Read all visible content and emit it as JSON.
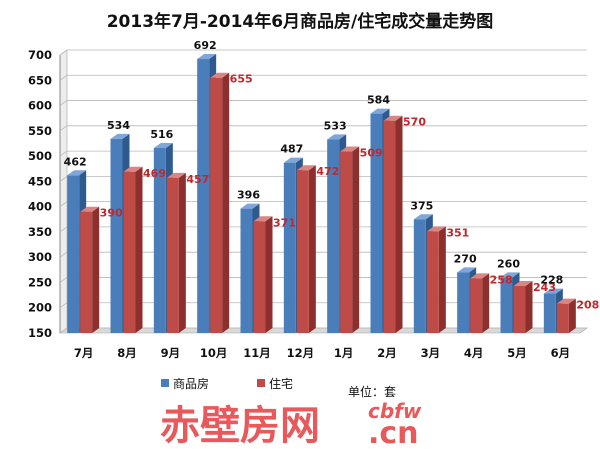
{
  "colors": {
    "series_a": "#4a7ebb",
    "series_a_top": "#7ea6d8",
    "series_a_side": "#2f5a8e",
    "series_b": "#be4b48",
    "series_b_top": "#d98583",
    "series_b_side": "#8c2f2d",
    "label_b": "#c0282d",
    "watermark": "#e8595c",
    "grid": "#b8b8b8"
  },
  "chart_data": {
    "type": "bar",
    "title": "2013年7月-2014年6月商品房/住宅成交量走势图",
    "categories": [
      "7月",
      "8月",
      "9月",
      "10月",
      "11月",
      "12月",
      "1月",
      "2月",
      "3月",
      "4月",
      "5月",
      "6月"
    ],
    "series": [
      {
        "name": "商品房",
        "values": [
          462,
          534,
          516,
          692,
          396,
          487,
          533,
          584,
          375,
          270,
          260,
          228
        ]
      },
      {
        "name": "住宅",
        "values": [
          390,
          469,
          457,
          655,
          371,
          472,
          509,
          570,
          351,
          258,
          243,
          208
        ]
      }
    ],
    "ylim": [
      150,
      700
    ],
    "yticks": [
      150,
      200,
      250,
      300,
      350,
      400,
      450,
      500,
      550,
      600,
      650,
      700
    ],
    "grid": true,
    "legend": "bottom",
    "unit_text": "单位：套"
  },
  "watermark": {
    "brand_cn": "赤壁房网",
    "brand_latin": "cbfw",
    "domain": ".cn"
  }
}
